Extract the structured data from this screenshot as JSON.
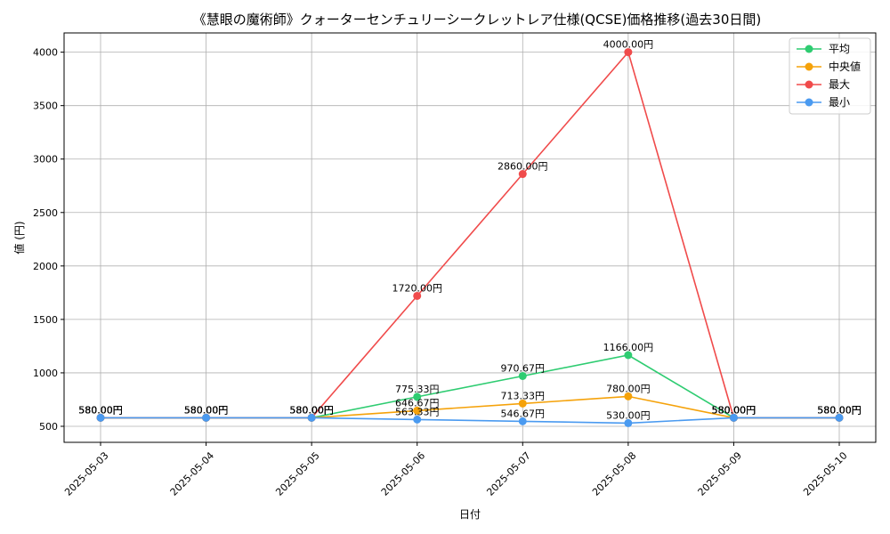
{
  "chart_data": {
    "type": "line",
    "title": "《慧眼の魔術師》クォーターセンチュリーシークレットレア仕様(QCSE)価格推移(過去30日間)",
    "xlabel": "日付",
    "ylabel": "値 (円)",
    "categories": [
      "2025-05-03",
      "2025-05-04",
      "2025-05-05",
      "2025-05-06",
      "2025-05-07",
      "2025-05-08",
      "2025-05-09",
      "2025-05-10"
    ],
    "yticks": [
      500,
      1000,
      1500,
      2000,
      2500,
      3000,
      3500,
      4000
    ],
    "ylim": [
      350,
      4180
    ],
    "grid": true,
    "legend_position": "top-right",
    "label_suffix": "円",
    "series": [
      {
        "name": "平均",
        "color": "#2ecc71",
        "values": [
          580,
          580,
          580,
          775.33,
          970.67,
          1166,
          580,
          580
        ]
      },
      {
        "name": "中央値",
        "color": "#f5a20a",
        "values": [
          580,
          580,
          580,
          646.67,
          713.33,
          780,
          580,
          580
        ]
      },
      {
        "name": "最大",
        "color": "#f04b4b",
        "values": [
          580,
          580,
          580,
          1720,
          2860,
          4000,
          580,
          580
        ]
      },
      {
        "name": "最小",
        "color": "#4a9af0",
        "values": [
          580,
          580,
          580,
          563.33,
          546.67,
          530,
          580,
          580
        ]
      }
    ]
  }
}
